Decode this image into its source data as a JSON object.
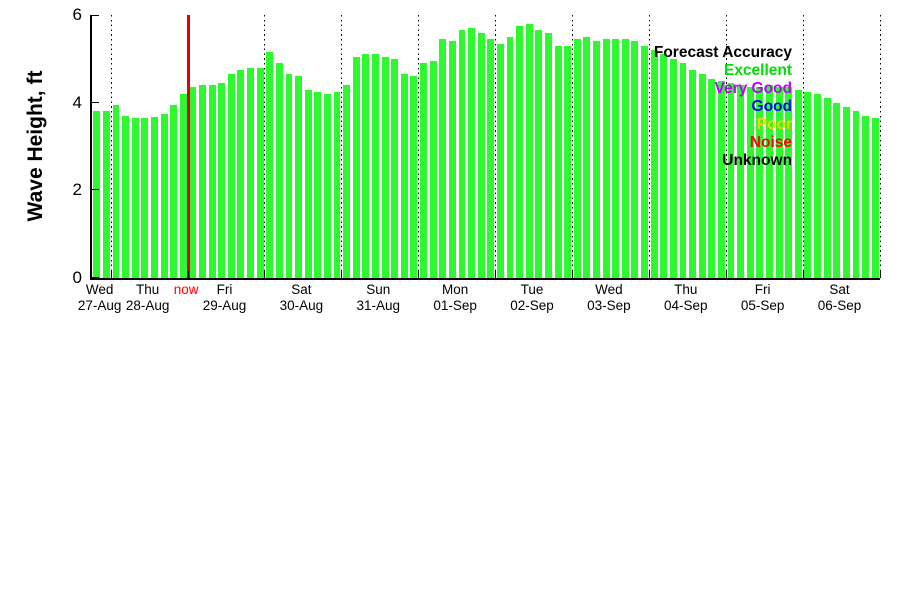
{
  "chart_data": {
    "type": "bar",
    "title": "",
    "ylabel": "Wave Height, ft",
    "xlabel": "",
    "ylim": [
      0,
      6
    ],
    "yticks": [
      0,
      2,
      4,
      6
    ],
    "grid": "vertical-dotted-day-boundaries",
    "bar_color": "#30f830",
    "axis_color": "#000000",
    "now_line_color": "#e40000",
    "now_label": "now",
    "now_label_color": "#ff0000",
    "now_index": 10,
    "first_day_bars": 2,
    "bars_per_day": 8,
    "days": [
      {
        "day": "Wed",
        "date": "27-Aug"
      },
      {
        "day": "Thu",
        "date": "28-Aug"
      },
      {
        "day": "Fri",
        "date": "29-Aug"
      },
      {
        "day": "Sat",
        "date": "30-Aug"
      },
      {
        "day": "Sun",
        "date": "31-Aug"
      },
      {
        "day": "Mon",
        "date": "01-Sep"
      },
      {
        "day": "Tue",
        "date": "02-Sep"
      },
      {
        "day": "Wed",
        "date": "03-Sep"
      },
      {
        "day": "Thu",
        "date": "04-Sep"
      },
      {
        "day": "Fri",
        "date": "05-Sep"
      },
      {
        "day": "Sat",
        "date": "06-Sep"
      }
    ],
    "values": [
      3.8,
      3.82,
      3.95,
      3.7,
      3.65,
      3.65,
      3.68,
      3.75,
      3.95,
      4.2,
      4.35,
      4.4,
      4.4,
      4.45,
      4.65,
      4.75,
      4.8,
      4.8,
      5.15,
      4.9,
      4.65,
      4.6,
      4.3,
      4.25,
      4.2,
      4.25,
      4.4,
      5.05,
      5.1,
      5.1,
      5.05,
      5.0,
      4.65,
      4.6,
      4.9,
      4.95,
      5.45,
      5.4,
      5.65,
      5.7,
      5.6,
      5.45,
      5.35,
      5.5,
      5.75,
      5.8,
      5.65,
      5.6,
      5.3,
      5.3,
      5.45,
      5.5,
      5.4,
      5.45,
      5.45,
      5.45,
      5.4,
      5.3,
      5.2,
      5.1,
      5.0,
      4.9,
      4.75,
      4.65,
      4.55,
      4.5,
      4.45,
      4.4,
      4.35,
      4.35,
      4.4,
      4.35,
      4.35,
      4.3,
      4.25,
      4.2,
      4.1,
      4.0,
      3.9,
      3.8,
      3.7,
      3.65
    ],
    "legend": {
      "title": {
        "label": "Forecast Accuracy",
        "color": "#000000"
      },
      "entries": [
        {
          "label": "Excellent",
          "color": "#00dd00"
        },
        {
          "label": "Very Good",
          "color": "#bf00ff"
        },
        {
          "label": "Good",
          "color": "#0000ff"
        },
        {
          "label": "Poor",
          "color": "#ffd000"
        },
        {
          "label": "Noise",
          "color": "#ff0000"
        },
        {
          "label": "Unknown",
          "color": "#000000"
        }
      ]
    }
  }
}
